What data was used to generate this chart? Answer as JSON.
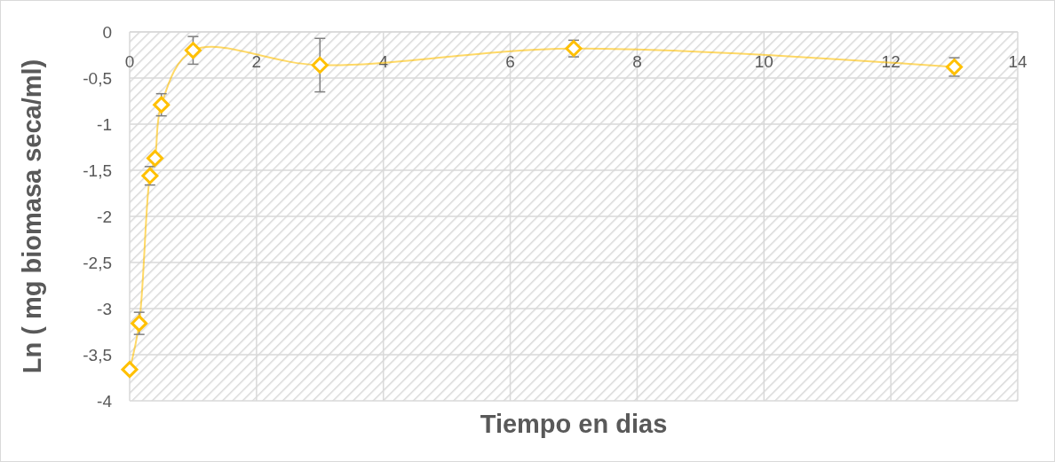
{
  "chart_data": {
    "type": "line",
    "xlabel": "Tiempo en dias",
    "ylabel": "Ln ( mg biomasa seca/ml)",
    "x": [
      0,
      0.15,
      0.32,
      0.4,
      0.5,
      1,
      3,
      7,
      13
    ],
    "series": [
      {
        "color": "#ffc000",
        "values": [
          -3.66,
          -3.16,
          -1.56,
          -1.37,
          -0.79,
          -0.2,
          -0.36,
          -0.18,
          -0.38
        ],
        "errors": [
          null,
          0.12,
          0.1,
          null,
          0.12,
          0.15,
          0.29,
          0.09,
          0.1
        ]
      }
    ],
    "xlim": [
      0,
      14
    ],
    "xticks": [
      0,
      2,
      4,
      6,
      8,
      10,
      12,
      14
    ],
    "ylim": [
      -4,
      0
    ],
    "yticks": [
      {
        "value": -4,
        "label": "-4"
      },
      {
        "value": -3.5,
        "label": "-3,5"
      },
      {
        "value": -3,
        "label": "-3"
      },
      {
        "value": -2.5,
        "label": "-2,5"
      },
      {
        "value": -2,
        "label": "-2"
      },
      {
        "value": -1.5,
        "label": "-1,5"
      },
      {
        "value": -1,
        "label": "-1"
      },
      {
        "value": -0.5,
        "label": "-0,5"
      },
      {
        "value": 0,
        "label": "0"
      }
    ],
    "grid": true,
    "marker": "diamond",
    "line_style": "solid"
  }
}
